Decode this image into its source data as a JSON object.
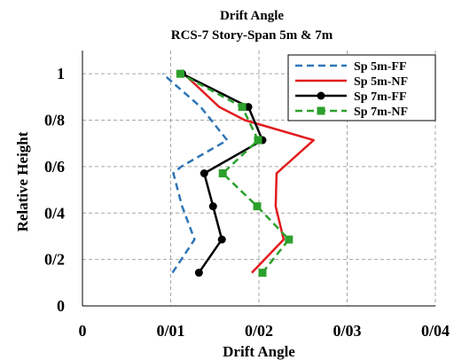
{
  "chart_data": {
    "type": "line",
    "title": "Drift Angle",
    "subtitle": "RCS-7 Story-Span 5m & 7m",
    "xlabel": "Drift Angle",
    "ylabel": "Relative Height",
    "xlim": [
      0,
      0.04
    ],
    "ylim": [
      0,
      1.1
    ],
    "x_tick_labels": [
      "0",
      "0/01",
      "0/02",
      "0/03",
      "0/04"
    ],
    "x_ticks": [
      0,
      0.01,
      0.02,
      0.03,
      0.04
    ],
    "y_tick_labels": [
      "0",
      "0/2",
      "0/4",
      "0/6",
      "0/8",
      "1"
    ],
    "y_ticks": [
      0,
      0.2,
      0.4,
      0.6,
      0.8,
      1.0
    ],
    "grid": true,
    "legend_position": "top-right",
    "series": [
      {
        "name": "Sp 5m-FF",
        "color": "#2e75b6",
        "style": "dashed",
        "marker": "none",
        "points": [
          [
            0.0102,
            0.143
          ],
          [
            0.0127,
            0.286
          ],
          [
            0.0113,
            0.429
          ],
          [
            0.0103,
            0.571
          ],
          [
            0.0112,
            0.6
          ],
          [
            0.0164,
            0.714
          ],
          [
            0.0134,
            0.857
          ],
          [
            0.0091,
            1.0
          ]
        ]
      },
      {
        "name": "Sp 5m-NF",
        "color": "#e31a1c",
        "style": "solid",
        "marker": "none",
        "points": [
          [
            0.0192,
            0.143
          ],
          [
            0.0228,
            0.286
          ],
          [
            0.0219,
            0.429
          ],
          [
            0.022,
            0.571
          ],
          [
            0.0262,
            0.714
          ],
          [
            0.0184,
            0.8
          ],
          [
            0.0155,
            0.857
          ],
          [
            0.0115,
            1.0
          ]
        ]
      },
      {
        "name": "Sp 7m-FF",
        "color": "#000000",
        "style": "solid",
        "marker": "circle",
        "points": [
          [
            0.0132,
            0.143
          ],
          [
            0.0158,
            0.286
          ],
          [
            0.0148,
            0.429
          ],
          [
            0.0138,
            0.571
          ],
          [
            0.0204,
            0.714
          ],
          [
            0.0188,
            0.857
          ],
          [
            0.0113,
            1.0
          ]
        ]
      },
      {
        "name": "Sp 7m-NF",
        "color": "#2ca02c",
        "style": "dashed",
        "marker": "square",
        "points": [
          [
            0.0204,
            0.143
          ],
          [
            0.0234,
            0.286
          ],
          [
            0.0198,
            0.429
          ],
          [
            0.0159,
            0.571
          ],
          [
            0.0199,
            0.714
          ],
          [
            0.0181,
            0.857
          ],
          [
            0.0111,
            1.0
          ]
        ]
      }
    ]
  }
}
